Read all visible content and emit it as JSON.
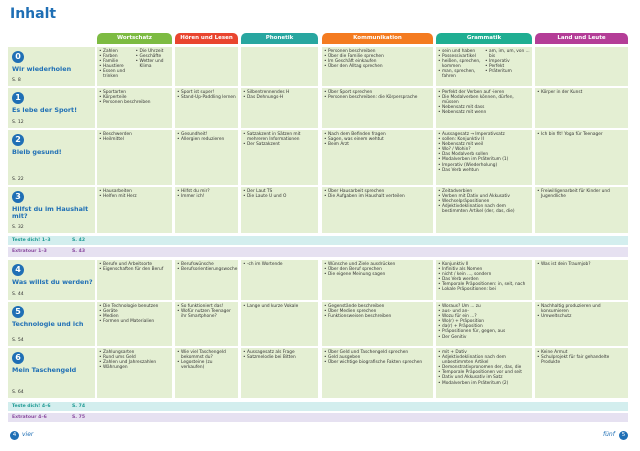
{
  "header": {
    "title": "Inhalt"
  },
  "columns": [
    "Wortschatz",
    "Hören und Lesen",
    "Phonetik",
    "Kommunikation",
    "Grammatik",
    "Land und Leute"
  ],
  "units": [
    {
      "number": "0",
      "title": "Wir wiederholen",
      "page": "S. 8",
      "cells": [
        [
          [
            "Zahlen",
            "Farben",
            "Familie",
            "Haustiere",
            "Essen und trinken"
          ],
          [
            "Die Uhrzeit",
            "Geschäfte",
            "Wetter und Klima"
          ]
        ],
        [],
        [],
        [
          [
            "Personen beschreiben",
            "Über die Familie sprechen",
            "Im Geschäft einkaufen",
            "Über den Alltag sprechen"
          ]
        ],
        [
          [
            "sein und haben",
            "Possessivartikel",
            "heißen, sprechen, kommen",
            "man, sprechen, fahren"
          ],
          [
            "am, im, um, von ... bis",
            "Imperativ",
            "Perfekt",
            "Präteritum"
          ]
        ],
        []
      ]
    },
    {
      "number": "1",
      "title": "Es lebe der Sport!",
      "page": "S. 12",
      "cells": [
        [
          [
            "Sportarten",
            "Körperteile",
            "Personen beschreiben"
          ]
        ],
        [
          [
            "Sport ist super!",
            "Stand-Up-Paddling lernen"
          ]
        ],
        [
          [
            "Silbentrennendes H",
            "Das Dehnungs-H"
          ]
        ],
        [
          [
            "Über Sport sprechen",
            "Personen beschreiben: die Körpersprache"
          ]
        ],
        [
          [
            "Perfekt der Verben auf -ieren",
            "Die Modalverben können, dürfen, müssen",
            "Nebensatz mit dass",
            "Nebensatz mit wenn"
          ]
        ],
        [
          [
            "Körper in der Kunst"
          ]
        ]
      ]
    },
    {
      "number": "2",
      "title": "Bleib gesund!",
      "page": "S. 22",
      "cells": [
        [
          [
            "Beschwerden",
            "Heilmittel"
          ]
        ],
        [
          [
            "Gesundheit!",
            "Allergien reduzieren"
          ]
        ],
        [
          [
            "Satzakzent in Sätzen mit mehreren Informationen",
            "Der Satzakzent"
          ]
        ],
        [
          [
            "Nach dem Befinden fragen",
            "Sagen, was einem wehtut",
            "Beim Arzt"
          ]
        ],
        [
          [
            "Aussagesatz → Imperativsatz",
            "sollen: Konjunktiv II",
            "Nebensatz mit weil",
            "Wo? / Wohin?",
            "Das Modalverb sollen",
            "Modalverben im Präteritum (1)",
            "Imperativ (Wiederholung)",
            "Das Verb wehtun"
          ]
        ],
        [
          [
            "Ich bin fit! Yoga für Teenager"
          ]
        ]
      ]
    },
    {
      "number": "3",
      "title": "Hilfst du im Haushalt mit?",
      "page": "S. 32",
      "cells": [
        [
          [
            "Hausarbeiten",
            "Helfen mit Herz"
          ]
        ],
        [
          [
            "Hilfst du mir?",
            "Immer ich!"
          ]
        ],
        [
          [
            "Der Laut TS",
            "Die Laute U und O"
          ]
        ],
        [
          [
            "Über Hausarbeit sprechen",
            "Die Aufgaben im Haushalt verteilen"
          ]
        ],
        [
          [
            "Zeitadverbien",
            "Verben mit Dativ und Akkusativ",
            "Wechselpräpositionen",
            "Adjektivdeklination nach dem bestimmten Artikel (der, das, die)"
          ]
        ],
        [
          [
            "Freiwilligenarbeit für Kinder und Jugendliche"
          ]
        ]
      ]
    },
    {
      "number": "4",
      "title": "Was willst du werden?",
      "page": "S. 44",
      "cells": [
        [
          [
            "Berufe und Arbeitsorte",
            "Eigenschaften für den Beruf"
          ]
        ],
        [
          [
            "Berufswünsche",
            "Berufsorientierungswoche"
          ]
        ],
        [
          [
            "-ch im Wortende"
          ]
        ],
        [
          [
            "Wünsche und Ziele ausdrücken",
            "Über den Beruf sprechen",
            "Die eigene Meinung sagen"
          ]
        ],
        [
          [
            "Konjunktiv II",
            "Infinitiv als Nomen",
            "nicht / kein ..., sondern",
            "Das Verb werden",
            "Temporale Präpositionen: in, seit, nach",
            "Lokale Präpositionen: bei"
          ]
        ],
        [
          [
            "Was ist dein Traumjob?"
          ]
        ]
      ]
    },
    {
      "number": "5",
      "title": "Technologie und ich",
      "page": "S. 54",
      "cells": [
        [
          [
            "Die Technologie benutzen",
            "Geräte",
            "Medien",
            "Formen und Materialien"
          ]
        ],
        [
          [
            "So funktioniert das!",
            "Wofür nutzen Teenager ihr Smartphone?"
          ]
        ],
        [
          [
            "Lange und kurze Vokale"
          ]
        ],
        [
          [
            "Gegenstände beschreiben",
            "Über Medien sprechen",
            "Funktionsweisen beschreiben"
          ]
        ],
        [
          [
            "Woraus? Um ... zu",
            "aus- und an-",
            "Wozu für ein ...?",
            "Wo(r) + Präposition",
            "da(r) + Präposition",
            "Präpositionen für, gegen, aus",
            "Der Genitiv"
          ]
        ],
        [
          [
            "Nachhaltig produzieren und konsumieren",
            "Umweltschutz"
          ]
        ]
      ]
    },
    {
      "number": "6",
      "title": "Mein Taschengeld",
      "page": "S. 64",
      "cells": [
        [
          [
            "Zahlungsarten",
            "Rund ums Geld",
            "Zahlen und Jahreszahlen",
            "Währungen"
          ]
        ],
        [
          [
            "Wie viel Taschengeld bekommst du?",
            "Legosteine (zu verkaufen)"
          ]
        ],
        [
          [
            "Aussagesatz als Frage",
            "Satzmelodie bei Bitten"
          ]
        ],
        [
          [
            "Über Geld und Taschengeld sprechen",
            "Geld ausgeben",
            "Über wichtige biografische Fakten sprechen"
          ]
        ],
        [
          [
            "mit + Dativ",
            "Adjektivdeklination nach dem unbestimmten Artikel",
            "Demonstrativpronomen der, das, die",
            "Temporale Präpositionen vor und seit",
            "Dativ und Akkusativ im Satz",
            "Modalverben im Präteritum (2)"
          ]
        ],
        [
          [
            "Keine Armut",
            "Schulprojekt für fair gehandelte Produkte"
          ]
        ]
      ]
    }
  ],
  "reviews": [
    {
      "label": "Teste dich! 1–3",
      "page": "S. 42"
    },
    {
      "label": "Extratour 1–3",
      "page": "S. 43"
    },
    {
      "label": "Teste dich! 4–6",
      "page": "S. 74"
    },
    {
      "label": "Extratour 4–6",
      "page": "S. 75"
    }
  ],
  "footer": {
    "left_number": "4",
    "left_word": "vier",
    "right_word": "fünf",
    "right_number": "5"
  }
}
